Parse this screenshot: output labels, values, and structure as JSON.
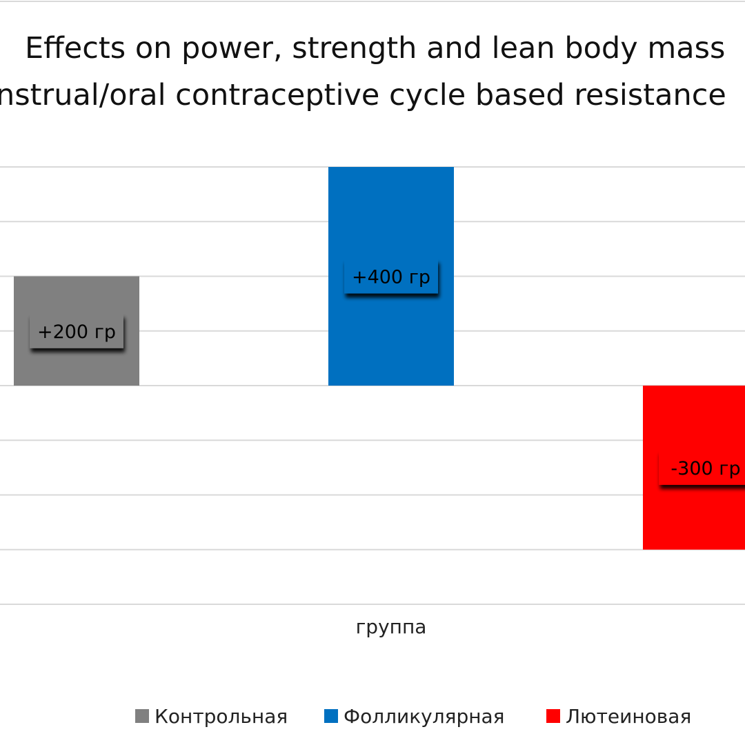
{
  "chart_data": {
    "type": "bar",
    "title_lines": [
      "Effects on power, strength and lean body mass",
      "nstrual/oral contraceptive cycle based resistance"
    ],
    "x_category_label": "группа",
    "ylim": [
      -400,
      400
    ],
    "grid": true,
    "legend_position": "bottom",
    "series": [
      {
        "name": "Контрольная",
        "value": 200,
        "label": "+200 гр",
        "color": "#808080"
      },
      {
        "name": "Фолликулярная",
        "value": 400,
        "label": "+400 гр",
        "color": "#0070c0"
      },
      {
        "name": "Лютеиновая",
        "value": -300,
        "label": "-300 гр",
        "color": "#ff0000"
      }
    ]
  }
}
